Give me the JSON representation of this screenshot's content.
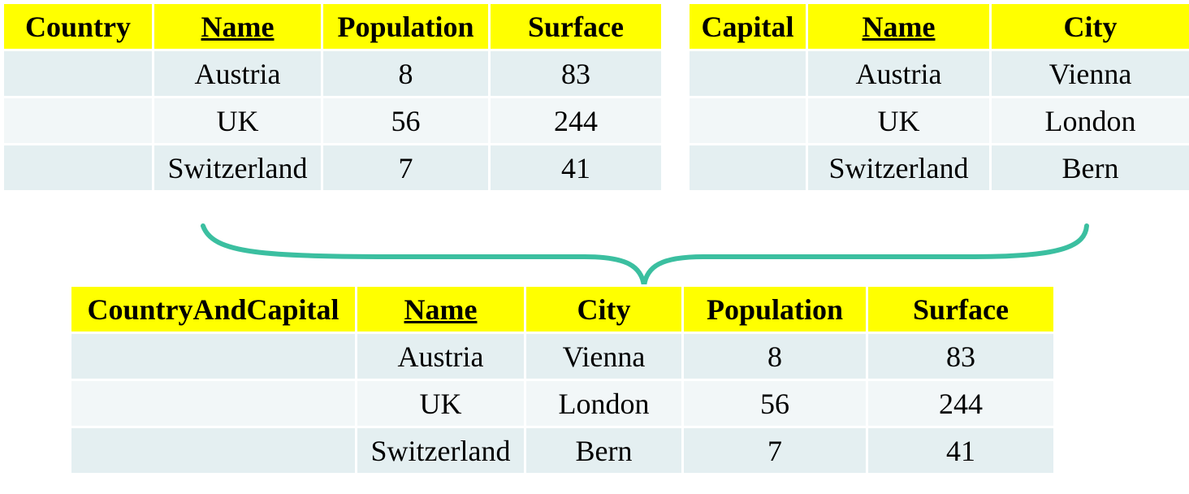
{
  "country_table": {
    "relation_name": "Country",
    "columns": [
      "Name",
      "Population",
      "Surface"
    ],
    "key_column": "Name",
    "rows": [
      [
        "Austria",
        "8",
        "83"
      ],
      [
        "UK",
        "56",
        "244"
      ],
      [
        "Switzerland",
        "7",
        "41"
      ]
    ]
  },
  "capital_table": {
    "relation_name": "Capital",
    "columns": [
      "Name",
      "City"
    ],
    "key_column": "Name",
    "rows": [
      [
        "Austria",
        "Vienna"
      ],
      [
        "UK",
        "London"
      ],
      [
        "Switzerland",
        "Bern"
      ]
    ]
  },
  "joined_table": {
    "relation_name": "CountryAndCapital",
    "columns": [
      "Name",
      "City",
      "Population",
      "Surface"
    ],
    "key_column": "Name",
    "rows": [
      [
        "Austria",
        "Vienna",
        "8",
        "83"
      ],
      [
        "UK",
        "London",
        "56",
        "244"
      ],
      [
        "Switzerland",
        "Bern",
        "7",
        "41"
      ]
    ]
  },
  "colors": {
    "header_bg": "#ffff00",
    "row_odd_bg": "#e4eff1",
    "row_even_bg": "#f2f7f8",
    "brace_stroke": "#3bbfa0"
  }
}
